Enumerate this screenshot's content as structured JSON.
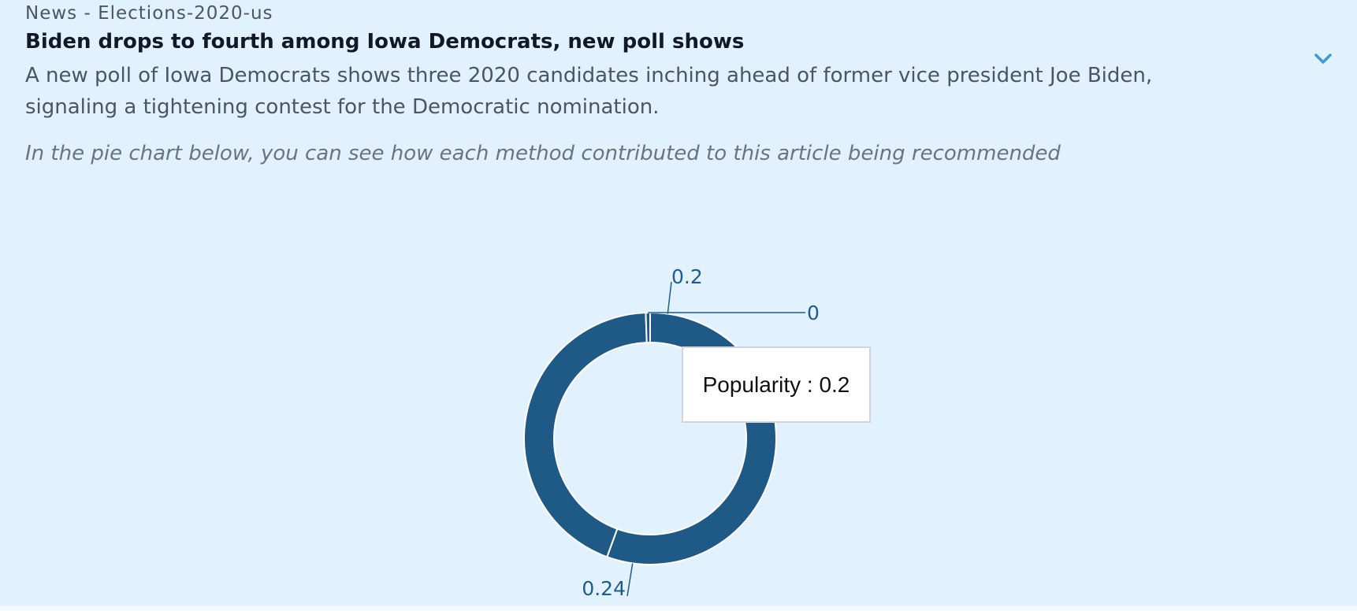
{
  "article": {
    "category": "News - Elections-2020-us",
    "title": "Biden drops to fourth among Iowa Democrats, new poll shows",
    "summary": "A new poll of Iowa Democrats shows three 2020 candidates inching ahead of former vice president Joe Biden, signaling a tightening contest for the Democratic nomination.",
    "chart_intro": "In the pie chart below, you can see how each method contributed to this article being recommended",
    "expand_icon": "chevron-down-icon"
  },
  "tooltip": {
    "label": "Popularity",
    "separator": " : ",
    "value": "0.2"
  },
  "colors": {
    "slice": "#1f5a87",
    "accent": "#3b9ad9",
    "label": "#1f5c8b"
  },
  "chart_data": {
    "type": "pie",
    "style": "donut",
    "slices": [
      {
        "name": "Popularity",
        "value": 0.2,
        "label": "0.2"
      },
      {
        "name": "",
        "value": 0.24,
        "label": "0.24"
      },
      {
        "name": "",
        "value": 0,
        "label": "0"
      }
    ]
  }
}
